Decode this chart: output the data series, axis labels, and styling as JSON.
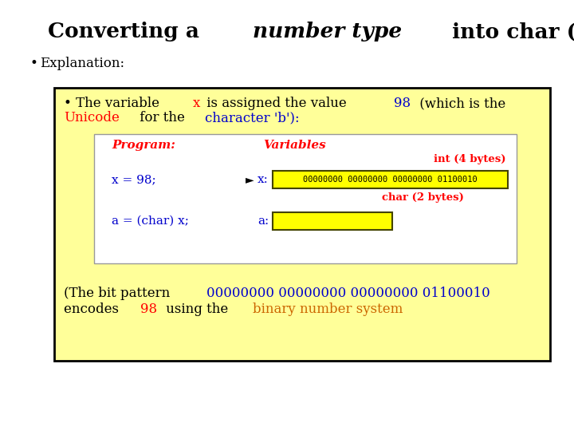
{
  "bg_color": "#FFFFFF",
  "inner_bg": "#FFFF99",
  "inner_box_bg": "#FFFFFF",
  "bit_box_color": "#FFFF00",
  "blue_text": "#0000CC",
  "red_text": "#FF0000",
  "orange_text": "#CC6600",
  "black_text": "#000000",
  "title_1": "Converting a ",
  "title_2": "number type",
  "title_3": " into char (cont.)",
  "bullet_label": "Explanation:",
  "inner_line1_a": "• The variable ",
  "inner_line1_b": "x",
  "inner_line1_c": " is assigned the value ",
  "inner_line1_d": "98",
  "inner_line1_e": " (which is the",
  "inner_line2_a": "Unicode",
  "inner_line2_b": " for the ",
  "inner_line2_c": "character 'b'):",
  "prog_label": "Program:",
  "var_label": "Variables",
  "int_label": "int (4 bytes)",
  "x_assign": "x = 98;",
  "arrow": "►",
  "x_label": "x:",
  "x_bits": "00000000 00000000 00000000 01100010",
  "char_label": "char (2 bytes)",
  "a_assign": "a = (char) x;",
  "a_label": "a:",
  "bottom1_a": "(The bit pattern ",
  "bottom1_b": "00000000 00000000 00000000 01100010",
  "bottom2_a": "encodes ",
  "bottom2_b": "98",
  "bottom2_c": " using the ",
  "bottom2_d": "binary number system"
}
